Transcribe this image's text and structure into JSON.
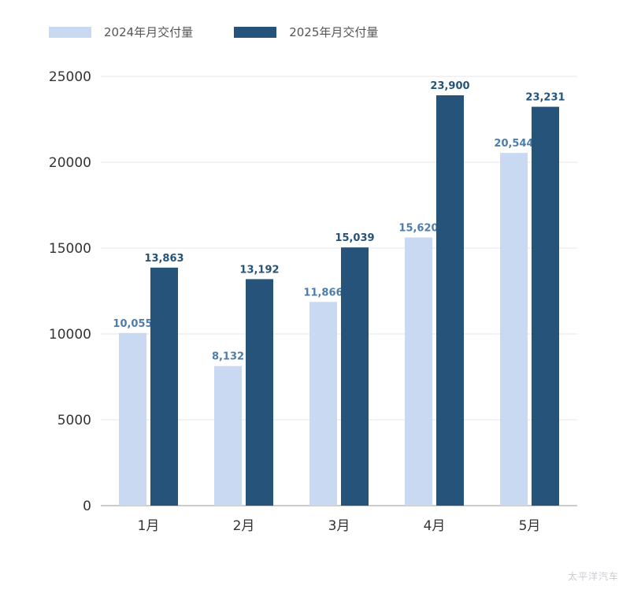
{
  "chart_data": {
    "type": "bar",
    "categories": [
      "1月",
      "2月",
      "3月",
      "4月",
      "5月"
    ],
    "series": [
      {
        "name": "2024年月交付量",
        "values": [
          10055,
          8132,
          11866,
          15620,
          20544
        ],
        "labels": [
          "10,055",
          "8,132",
          "11,866",
          "15,620",
          "20,544"
        ],
        "color": "#c8d9f1",
        "label_color": "#4e7cab"
      },
      {
        "name": "2025年月交付量",
        "values": [
          13863,
          13192,
          15039,
          23900,
          23231
        ],
        "labels": [
          "13,863",
          "13,192",
          "15,039",
          "23,900",
          "23,231"
        ],
        "color": "#255379",
        "label_color": "#255379"
      }
    ],
    "ylim": [
      0,
      25000
    ],
    "yticks": [
      0,
      5000,
      10000,
      15000,
      20000,
      25000
    ],
    "grid": true,
    "legend": "top-left"
  },
  "watermark": "太平洋汽车"
}
